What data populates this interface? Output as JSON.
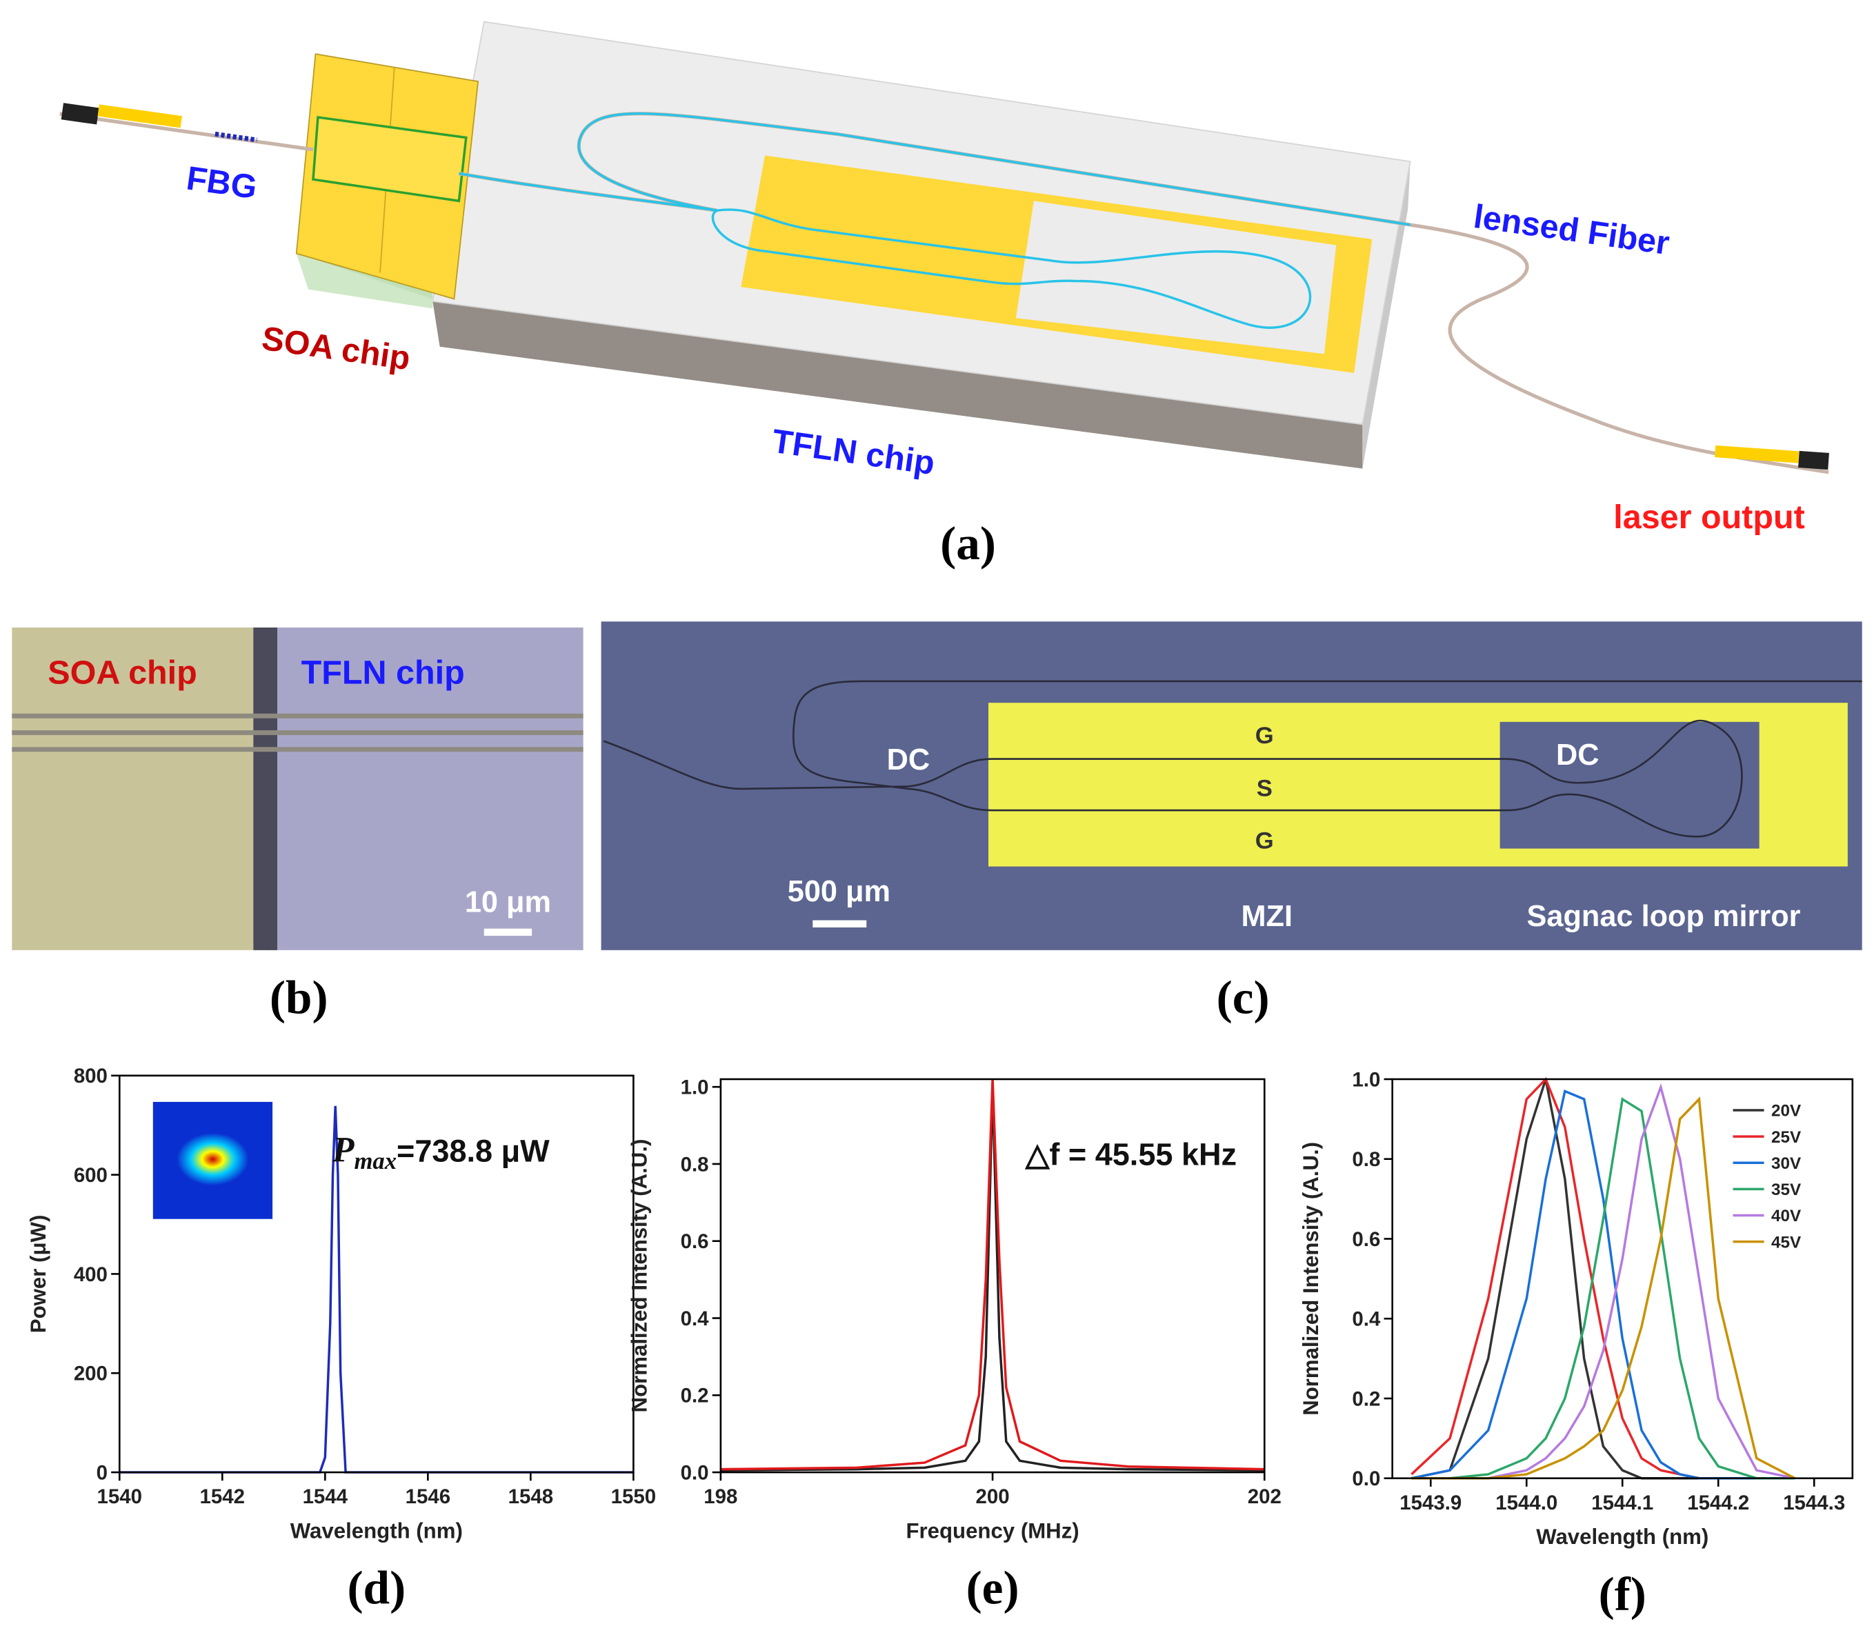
{
  "figure": {
    "a": {
      "label": "(a)",
      "fbg": "FBG",
      "fiber": "lensed Fiber",
      "soa": "SOA chip",
      "tfln": "TFLN chip",
      "output": "laser output"
    },
    "b": {
      "label": "(b)",
      "soa": "SOA chip",
      "tfln": "TFLN chip",
      "scale": "10 μm"
    },
    "c": {
      "label": "(c)",
      "dc1": "DC",
      "dc2": "DC",
      "g1": "G",
      "s": "S",
      "g2": "G",
      "scale": "500 μm",
      "mzi": "MZI",
      "sagnac": "Sagnac loop mirror"
    }
  },
  "chart_data": [
    {
      "type": "line",
      "panel_label": "(d)",
      "x_label": "Wavelength (nm)",
      "y_label": "Power (μW)",
      "annotation_symbol": "P",
      "annotation_subscript": "max",
      "annotation": "=738.8 μW",
      "x": [
        1540,
        1543.9,
        1544.0,
        1544.1,
        1544.15,
        1544.2,
        1544.25,
        1544.3,
        1544.4,
        1550
      ],
      "series": [
        {
          "color": "#1f2bb8",
          "values": [
            0,
            0,
            30,
            300,
            600,
            738.8,
            600,
            200,
            0,
            0
          ]
        }
      ],
      "xlim": [
        1540,
        1550
      ],
      "xticks": [
        1540,
        1542,
        1544,
        1546,
        1548,
        1550
      ],
      "ylim": [
        0,
        800
      ],
      "yticks": [
        0,
        200,
        400,
        600,
        800
      ]
    },
    {
      "type": "line",
      "panel_label": "(e)",
      "x_label": "Frequency (MHz)",
      "y_label": "Normalized Intensity (A.U.)",
      "annotation": "△f = 45.55 kHz",
      "x": [
        198,
        199,
        199.5,
        199.8,
        199.9,
        199.95,
        200,
        200.05,
        200.1,
        200.2,
        200.5,
        201,
        202
      ],
      "series": [
        {
          "color": "#222222",
          "values": [
            0.005,
            0.008,
            0.012,
            0.03,
            0.08,
            0.3,
            1.0,
            0.35,
            0.08,
            0.03,
            0.012,
            0.008,
            0.005
          ]
        },
        {
          "color": "#e0191b",
          "values": [
            0.008,
            0.012,
            0.025,
            0.07,
            0.2,
            0.5,
            1.02,
            0.55,
            0.22,
            0.08,
            0.03,
            0.015,
            0.008
          ]
        }
      ],
      "xlim": [
        198,
        202
      ],
      "xticks": [
        198,
        200,
        202
      ],
      "ylim": [
        0,
        1.02
      ],
      "yticks": [
        {
          "value": 0,
          "label": "0.0"
        },
        0.2,
        0.4,
        0.6,
        0.8,
        {
          "value": 1,
          "label": "1.0"
        }
      ]
    },
    {
      "type": "line",
      "panel_label": "(f)",
      "x_label": "Wavelength (nm)",
      "y_label": "Normalized Intensity (A.U.)",
      "legend": "top-right",
      "x": [
        1543.88,
        1543.92,
        1543.96,
        1544.0,
        1544.02,
        1544.04,
        1544.06,
        1544.08,
        1544.1,
        1544.12,
        1544.14,
        1544.16,
        1544.18,
        1544.2,
        1544.24,
        1544.28
      ],
      "series": [
        {
          "name": "20V",
          "color": "#333333",
          "values": [
            0,
            0.02,
            0.3,
            0.85,
            1.0,
            0.75,
            0.3,
            0.08,
            0.02,
            0,
            0,
            0,
            0,
            0,
            0,
            0
          ]
        },
        {
          "name": "25V",
          "color": "#e8262a",
          "values": [
            0.01,
            0.1,
            0.45,
            0.95,
            1.0,
            0.88,
            0.6,
            0.35,
            0.15,
            0.05,
            0.02,
            0.01,
            0,
            0,
            0,
            0
          ]
        },
        {
          "name": "30V",
          "color": "#1a6fd8",
          "values": [
            0,
            0.02,
            0.12,
            0.45,
            0.75,
            0.97,
            0.95,
            0.7,
            0.35,
            0.12,
            0.04,
            0.01,
            0,
            0,
            0,
            0
          ]
        },
        {
          "name": "35V",
          "color": "#2ca76a",
          "values": [
            0,
            0,
            0.01,
            0.05,
            0.1,
            0.2,
            0.38,
            0.65,
            0.95,
            0.92,
            0.62,
            0.3,
            0.1,
            0.03,
            0,
            0
          ]
        },
        {
          "name": "40V",
          "color": "#b57ae0",
          "values": [
            0,
            0,
            0,
            0.02,
            0.05,
            0.1,
            0.18,
            0.32,
            0.55,
            0.85,
            0.98,
            0.8,
            0.5,
            0.2,
            0.02,
            0
          ]
        },
        {
          "name": "45V",
          "color": "#c99100",
          "values": [
            0,
            0,
            0,
            0.01,
            0.03,
            0.05,
            0.08,
            0.12,
            0.22,
            0.38,
            0.6,
            0.9,
            0.95,
            0.45,
            0.05,
            0
          ]
        }
      ],
      "xlim": [
        1543.86,
        1544.34
      ],
      "xticks": [
        1543.9,
        {
          "value": 1544,
          "label": "1544.0"
        },
        1544.1,
        1544.2,
        1544.3
      ],
      "ylim": [
        0,
        1
      ],
      "yticks": [
        {
          "value": 0,
          "label": "0.0"
        },
        0.2,
        0.4,
        0.6,
        0.8,
        {
          "value": 1,
          "label": "1.0"
        }
      ]
    }
  ]
}
